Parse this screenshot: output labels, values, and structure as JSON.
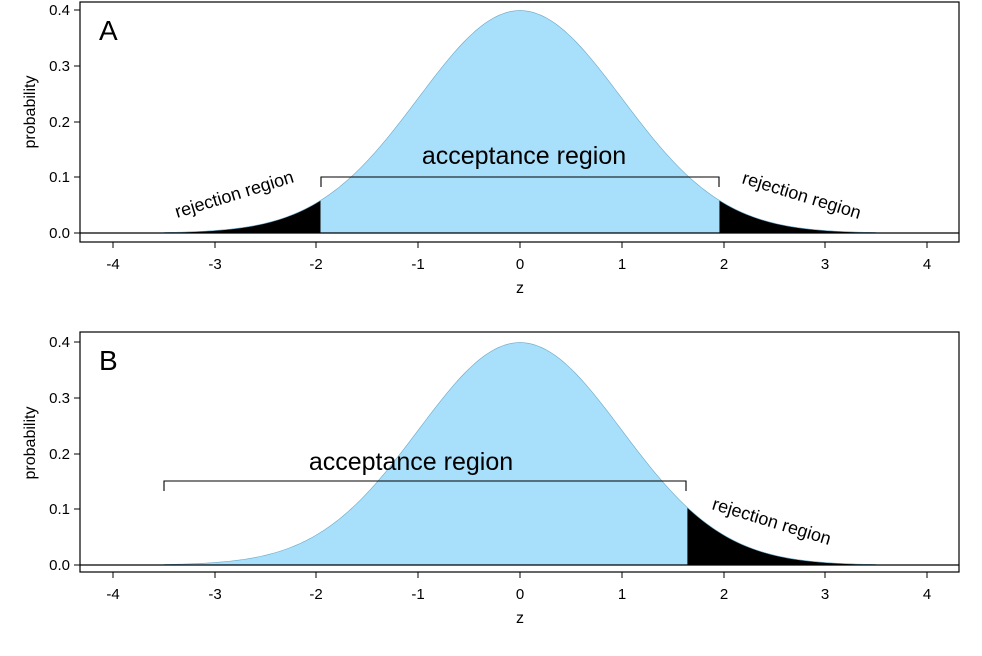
{
  "colors": {
    "acceptance_fill": "#A8DFFA",
    "rejection_fill": "#000000",
    "axis": "#000000",
    "background": "#FFFFFF"
  },
  "chart_data": [
    {
      "type": "area",
      "panel": "A",
      "title": "",
      "description": "Standard normal density with two-tailed rejection regions (alpha = 0.05)",
      "xlabel": "z",
      "ylabel": "probability",
      "xlim": [
        -4.3,
        4.3
      ],
      "ylim": [
        0.0,
        0.4
      ],
      "xticks": [
        -4,
        -3,
        -2,
        -1,
        0,
        1,
        2,
        3,
        4
      ],
      "yticks": [
        0.0,
        0.1,
        0.2,
        0.3,
        0.4
      ],
      "ytick_labels": [
        "0.0",
        "0.1",
        "0.2",
        "0.3",
        "0.4"
      ],
      "grid": false,
      "curve": {
        "distribution": "normal",
        "mean": 0,
        "sd": 1,
        "x_range": [
          -3.5,
          3.5
        ],
        "peak": 0.399
      },
      "regions": [
        {
          "name": "rejection region",
          "from": -3.5,
          "to": -1.96,
          "fill": "#000000"
        },
        {
          "name": "acceptance region",
          "from": -1.96,
          "to": 1.96,
          "fill": "#A8DFFA"
        },
        {
          "name": "rejection region",
          "from": 1.96,
          "to": 3.5,
          "fill": "#000000"
        }
      ],
      "annotations": [
        {
          "text": "A",
          "role": "panel label"
        },
        {
          "text": "acceptance region",
          "bracket_from": -1.96,
          "bracket_to": 1.96,
          "bracket_y": 0.1
        },
        {
          "text": "rejection region",
          "side": "left",
          "rotated": true
        },
        {
          "text": "rejection region",
          "side": "right",
          "rotated": true
        }
      ]
    },
    {
      "type": "area",
      "panel": "B",
      "title": "",
      "description": "Standard normal density with one-tailed (upper) rejection region (alpha = 0.05)",
      "xlabel": "z",
      "ylabel": "probability",
      "xlim": [
        -4.3,
        4.3
      ],
      "ylim": [
        0.0,
        0.4
      ],
      "xticks": [
        -4,
        -3,
        -2,
        -1,
        0,
        1,
        2,
        3,
        4
      ],
      "yticks": [
        0.0,
        0.1,
        0.2,
        0.3,
        0.4
      ],
      "ytick_labels": [
        "0.0",
        "0.1",
        "0.2",
        "0.3",
        "0.4"
      ],
      "grid": false,
      "curve": {
        "distribution": "normal",
        "mean": 0,
        "sd": 1,
        "x_range": [
          -3.5,
          3.5
        ],
        "peak": 0.399
      },
      "regions": [
        {
          "name": "acceptance region",
          "from": -3.5,
          "to": 1.645,
          "fill": "#A8DFFA"
        },
        {
          "name": "rejection region",
          "from": 1.645,
          "to": 3.5,
          "fill": "#000000"
        }
      ],
      "annotations": [
        {
          "text": "B",
          "role": "panel label"
        },
        {
          "text": "acceptance region",
          "bracket_from": -3.5,
          "bracket_to": 1.645,
          "bracket_y": 0.15
        },
        {
          "text": "rejection region",
          "side": "right",
          "rotated": true
        }
      ]
    }
  ],
  "panels": {
    "A": {
      "letter": "A",
      "xlabel": "z",
      "ylabel": "probability",
      "acceptance_label": "acceptance region",
      "rejection_left_label": "rejection region",
      "rejection_right_label": "rejection region"
    },
    "B": {
      "letter": "B",
      "xlabel": "z",
      "ylabel": "probability",
      "acceptance_label": "acceptance region",
      "rejection_right_label": "rejection region"
    }
  },
  "axis": {
    "xticks": [
      "-4",
      "-3",
      "-2",
      "-1",
      "0",
      "1",
      "2",
      "3",
      "4"
    ],
    "yticks": [
      "0.0",
      "0.1",
      "0.2",
      "0.3",
      "0.4"
    ]
  }
}
